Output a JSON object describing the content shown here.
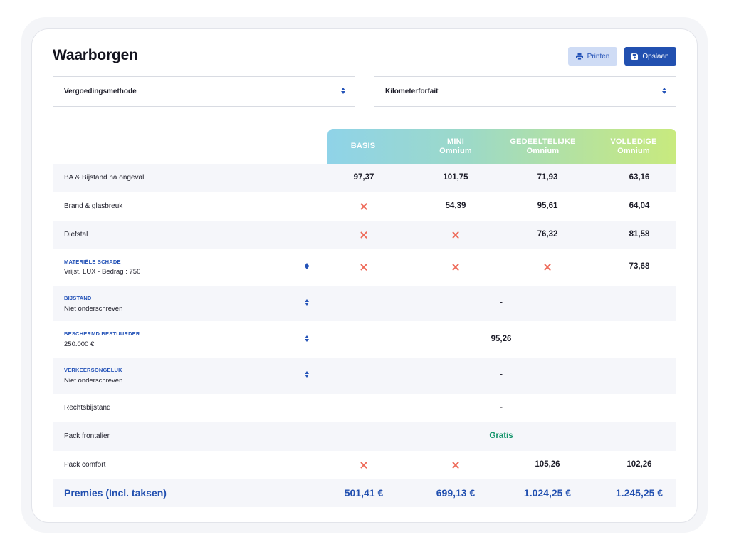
{
  "page": {
    "title": "Waarborgen"
  },
  "toolbar": {
    "print_label": "Printen",
    "save_label": "Opslaan",
    "print_icon": "printer-icon",
    "save_icon": "floppy-disk-icon"
  },
  "filters": {
    "method": {
      "value": "Vergoedingsmethode"
    },
    "mileage": {
      "value": "Kilometerforfait"
    }
  },
  "plans": [
    {
      "name": "BASIS",
      "sub": ""
    },
    {
      "name": "MINI",
      "sub": "Omnium"
    },
    {
      "name": "GEDEELTELIJKE",
      "sub": "Omnium"
    },
    {
      "name": "VOLLEDIGE",
      "sub": "Omnium"
    }
  ],
  "rows": [
    {
      "label": "BA & Bijstand na ongeval",
      "values": [
        "97,37",
        "101,75",
        "71,93",
        "63,16"
      ]
    },
    {
      "label": "Brand & glasbreuk",
      "values": [
        "x",
        "54,39",
        "95,61",
        "64,04"
      ]
    },
    {
      "label": "Diefstal",
      "values": [
        "x",
        "x",
        "76,32",
        "81,58"
      ]
    },
    {
      "category": "MATERIËLE SCHADE",
      "label": "Vrijst. LUX - Bedrag : 750",
      "values": [
        "x",
        "x",
        "x",
        "73,68"
      ]
    },
    {
      "category": "BIJSTAND",
      "label": "Niet onderschreven",
      "value": "-"
    },
    {
      "category": "BESCHERMD BESTUURDER",
      "label": "250.000 €",
      "value": "95,26"
    },
    {
      "category": "VERKEERSONGELUK",
      "label": "Niet onderschreven",
      "value": "-"
    },
    {
      "label": "Rechtsbijstand",
      "value": "-"
    },
    {
      "label": "Pack frontalier",
      "value": "Gratis"
    },
    {
      "label": "Pack comfort",
      "values": [
        "x",
        "x",
        "105,26",
        "102,26"
      ]
    }
  ],
  "total": {
    "label": "Premies (Incl. taksen)",
    "values": [
      "501,41 €",
      "699,13 €",
      "1.024,25 €",
      "1.245,25 €"
    ]
  },
  "colors": {
    "accent": "#2250B0",
    "cross": "#EE6B5A",
    "gratis": "#13946A",
    "header_gradient_start": "#8FD3E8",
    "header_gradient_end": "#C8EA7E"
  }
}
